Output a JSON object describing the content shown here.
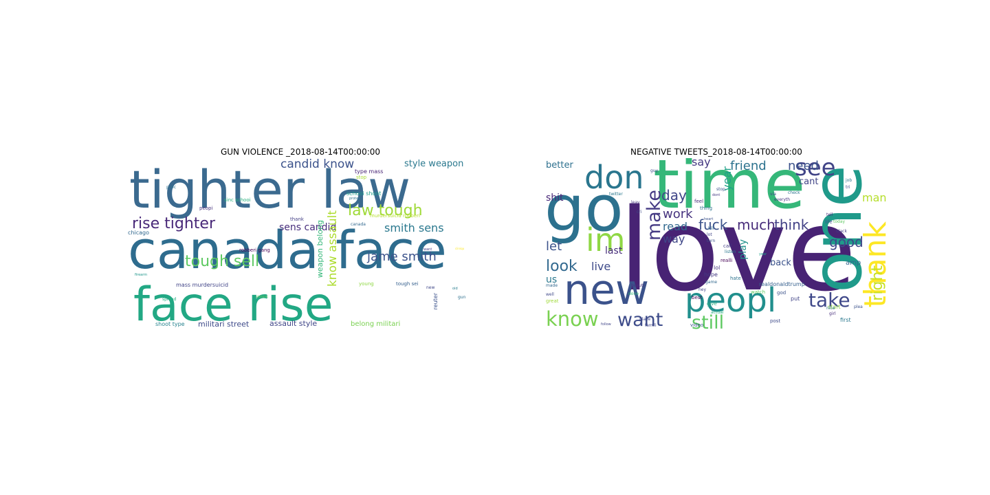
{
  "panels": [
    {
      "title": "GUN VIOLENCE _2018-08-14T00:00:00",
      "words": [
        {
          "text": "tighter law",
          "color": "#3b6a8f"
        },
        {
          "text": "canada face",
          "color": "#2e6c8e"
        },
        {
          "text": "face rise",
          "color": "#22a884"
        },
        {
          "text": "rise tighter",
          "color": "#482878"
        },
        {
          "text": "law tough",
          "color": "#a0da39"
        },
        {
          "text": "candid know",
          "color": "#3b528b"
        },
        {
          "text": "style weapon",
          "color": "#2a788e"
        },
        {
          "text": "sens candid",
          "color": "#472d7b"
        },
        {
          "text": "smith sens",
          "color": "#2a788e"
        },
        {
          "text": "jame smith",
          "color": "#3b528b"
        },
        {
          "text": "tough sell",
          "color": "#5ec962"
        },
        {
          "text": "know assault",
          "color": "#addc30"
        },
        {
          "text": "weapon belong",
          "color": "#35b779"
        },
        {
          "text": "assault style",
          "color": "#404688"
        },
        {
          "text": "militari street",
          "color": "#3e4a89"
        },
        {
          "text": "belong militari",
          "color": "#7ad151"
        },
        {
          "text": "type mass",
          "color": "#482475"
        },
        {
          "text": "schooi shoot",
          "color": "#1f9e89"
        },
        {
          "text": "robberi gang",
          "color": "#440154"
        },
        {
          "text": "chicago",
          "color": "#31688e"
        },
        {
          "text": "mass murdersuicid",
          "color": "#414487"
        },
        {
          "text": "shoot type",
          "color": "#26828e"
        },
        {
          "text": "sinc schooi",
          "color": "#2ab07f"
        },
        {
          "text": "peopi",
          "color": "#46327e"
        },
        {
          "text": "poiic",
          "color": "#2c728e"
        },
        {
          "text": "thank",
          "color": "#433e85"
        },
        {
          "text": "canada",
          "color": "#31688e"
        },
        {
          "text": "young",
          "color": "#8fd744"
        },
        {
          "text": "tough sei",
          "color": "#355f8d"
        },
        {
          "text": "reuter",
          "color": "#3b528b"
        },
        {
          "text": "gun",
          "color": "#2d708e"
        },
        {
          "text": "firearm",
          "color": "#1f968b"
        },
        {
          "text": "viotenc",
          "color": "#5ec962"
        },
        {
          "text": "spread",
          "color": "#27ad81"
        },
        {
          "text": "murdersuicia robberi",
          "color": "#b5de2b"
        },
        {
          "text": "stop",
          "color": "#a8db34"
        },
        {
          "text": "protect",
          "color": "#2c738e"
        },
        {
          "text": "want",
          "color": "#443a83"
        },
        {
          "text": "ciiniqu",
          "color": "#fde725"
        },
        {
          "text": "new",
          "color": "#3f4788"
        },
        {
          "text": "oid",
          "color": "#287c8e"
        }
      ]
    },
    {
      "title": "NEGATIVE TWEETS_2018-08-14T00:00:00",
      "words": [
        {
          "text": "love",
          "color": "#482374"
        },
        {
          "text": "time",
          "color": "#35b779"
        },
        {
          "text": "one",
          "color": "#1f9a8a"
        },
        {
          "text": "go",
          "color": "#2c718e"
        },
        {
          "text": "new",
          "color": "#3b528b"
        },
        {
          "text": "peopl",
          "color": "#218f8d"
        },
        {
          "text": "don",
          "color": "#2a768e"
        },
        {
          "text": "thank",
          "color": "#fde725"
        },
        {
          "text": "im",
          "color": "#8fd744"
        },
        {
          "text": "see",
          "color": "#414487"
        },
        {
          "text": "make",
          "color": "#443983"
        },
        {
          "text": "right",
          "color": "#c8e020"
        },
        {
          "text": "know",
          "color": "#7ad151"
        },
        {
          "text": "want",
          "color": "#3e4c8a"
        },
        {
          "text": "still",
          "color": "#5ec962"
        },
        {
          "text": "take",
          "color": "#3f4889"
        },
        {
          "text": "look",
          "color": "#31688e"
        },
        {
          "text": "fuck",
          "color": "#3b528b"
        },
        {
          "text": "much",
          "color": "#472c7a"
        },
        {
          "text": "think",
          "color": "#424186"
        },
        {
          "text": "good",
          "color": "#3e4989"
        },
        {
          "text": "friend",
          "color": "#2c728e"
        },
        {
          "text": "need",
          "color": "#3b528b"
        },
        {
          "text": "day",
          "color": "#404688"
        },
        {
          "text": "work",
          "color": "#46337f"
        },
        {
          "text": "read",
          "color": "#31688e"
        },
        {
          "text": "say",
          "color": "#453882"
        },
        {
          "text": "man",
          "color": "#b5de2b"
        },
        {
          "text": "year",
          "color": "#1fa188"
        },
        {
          "text": "let",
          "color": "#3b528b"
        },
        {
          "text": "live",
          "color": "#3e4a89"
        },
        {
          "text": "shit",
          "color": "#482878"
        },
        {
          "text": "better",
          "color": "#2d708e"
        },
        {
          "text": "way",
          "color": "#3f4788"
        },
        {
          "text": "last",
          "color": "#472d7b"
        },
        {
          "text": "play",
          "color": "#21918c"
        },
        {
          "text": "us",
          "color": "#2a788e"
        },
        {
          "text": "back",
          "color": "#3b528b"
        },
        {
          "text": "cant",
          "color": "#414487"
        },
        {
          "text": "amp",
          "color": "#31688e"
        },
        {
          "text": "lol",
          "color": "#46327e"
        },
        {
          "text": "hope",
          "color": "#443a83"
        },
        {
          "text": "realdonaldtrump",
          "color": "#355f8d"
        },
        {
          "text": "watch",
          "color": "#5ec962"
        },
        {
          "text": "put",
          "color": "#414487"
        },
        {
          "text": "start",
          "color": "#8fd744"
        },
        {
          "text": "first",
          "color": "#2a788e"
        },
        {
          "text": "god",
          "color": "#3b528b"
        },
        {
          "text": "call",
          "color": "#433e85"
        },
        {
          "text": "hate",
          "color": "#2c728e"
        },
        {
          "text": "best",
          "color": "#440154"
        },
        {
          "text": "give",
          "color": "#27ad81"
        },
        {
          "text": "post",
          "color": "#3e4a89"
        },
        {
          "text": "video",
          "color": "#3b528b"
        },
        {
          "text": "done",
          "color": "#35b779"
        },
        {
          "text": "famili",
          "color": "#404688"
        },
        {
          "text": "beauti",
          "color": "#46337f"
        },
        {
          "text": "great",
          "color": "#a0da39"
        },
        {
          "text": "made",
          "color": "#31688e"
        },
        {
          "text": "well",
          "color": "#3f4889"
        },
        {
          "text": "feel",
          "color": "#472c7a"
        },
        {
          "text": "thing",
          "color": "#2c718e"
        },
        {
          "text": "via",
          "color": "#414487"
        },
        {
          "text": "life",
          "color": "#3b528b"
        },
        {
          "text": "today",
          "color": "#5ec962"
        },
        {
          "text": "tell",
          "color": "#482878"
        },
        {
          "text": "guy",
          "color": "#3e4c8a"
        },
        {
          "text": "listen",
          "color": "#2a788e"
        },
        {
          "text": "realli",
          "color": "#440154"
        },
        {
          "text": "kill",
          "color": "#31688e"
        },
        {
          "text": "lot",
          "color": "#414487"
        },
        {
          "text": "turn",
          "color": "#3b528b"
        },
        {
          "text": "check",
          "color": "#2c728e"
        },
        {
          "text": "black",
          "color": "#443983"
        },
        {
          "text": "year",
          "color": "#1fa188"
        },
        {
          "text": "everyth",
          "color": "#46327e"
        },
        {
          "text": "stop",
          "color": "#3b528b"
        },
        {
          "text": "dont",
          "color": "#443a83"
        },
        {
          "text": "game",
          "color": "#31688e"
        },
        {
          "text": "hey",
          "color": "#414487"
        },
        {
          "text": "twitter",
          "color": "#2a788e"
        },
        {
          "text": "leav",
          "color": "#46337f"
        },
        {
          "text": "cri",
          "color": "#3e4a89"
        },
        {
          "text": "nice",
          "color": "#2c718e"
        },
        {
          "text": "girl",
          "color": "#472d7b"
        },
        {
          "text": "heart",
          "color": "#3b528b"
        },
        {
          "text": "actual",
          "color": "#27ad81"
        },
        {
          "text": "place",
          "color": "#3f4788"
        },
        {
          "text": "plea",
          "color": "#3b528b"
        },
        {
          "text": "tri",
          "color": "#414487"
        },
        {
          "text": "job",
          "color": "#2c728e"
        },
        {
          "text": "follow",
          "color": "#404688"
        }
      ]
    }
  ]
}
